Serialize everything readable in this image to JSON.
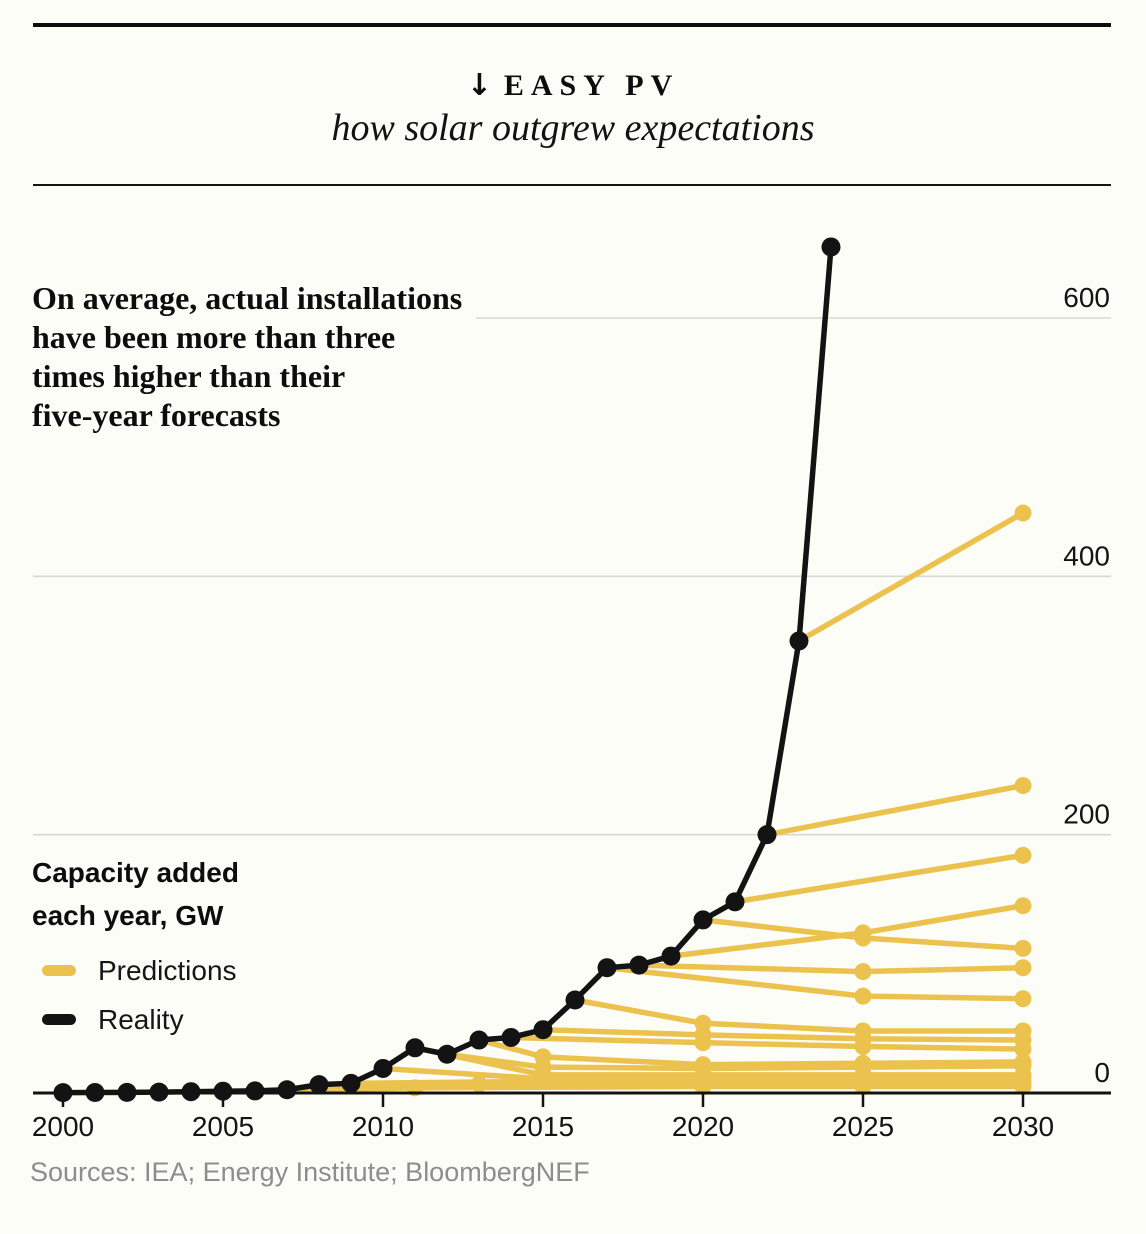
{
  "header": {
    "arrow": "↓",
    "kicker": "EASY PV",
    "subtitle": "how solar outgrew expectations"
  },
  "annotation": {
    "lines": [
      "On average, actual installations",
      "have been more than three",
      "times higher than their",
      "five-year forecasts"
    ]
  },
  "axis_note": {
    "lines": [
      "Capacity added",
      "each year, GW"
    ]
  },
  "legend": {
    "items": [
      {
        "label": "Predictions",
        "color": "#ecc24f"
      },
      {
        "label": "Reality",
        "color": "#131313"
      }
    ]
  },
  "source": "Sources: IEA; Energy Institute; BloombergNEF",
  "colors": {
    "prediction": "#ecc24f",
    "reality": "#131313",
    "grid": "#d7d7d3",
    "axis": "#121212",
    "text": "#141414",
    "muted": "#8d8d8d",
    "background": "#fdfdf7"
  },
  "chart_data": {
    "type": "line",
    "title": "EASY PV — how solar outgrew expectations",
    "ylabel": "Capacity added each year, GW",
    "xlim": [
      2000,
      2031
    ],
    "ylim": [
      0,
      620
    ],
    "x_ticks": [
      2000,
      2005,
      2010,
      2015,
      2020,
      2025,
      2030
    ],
    "y_ticks": [
      0,
      200,
      400,
      600
    ],
    "grid": "horizontal gridlines at 200, 400, 600; y labels on right",
    "legend_position": "left, mid-chart",
    "series": [
      {
        "name": "Reality",
        "style": "line-with-markers",
        "color": "#131313",
        "points": [
          [
            2000,
            0.3
          ],
          [
            2001,
            0.4
          ],
          [
            2002,
            0.5
          ],
          [
            2003,
            0.7
          ],
          [
            2004,
            1
          ],
          [
            2005,
            1.4
          ],
          [
            2006,
            1.6
          ],
          [
            2007,
            2.5
          ],
          [
            2008,
            6.5
          ],
          [
            2009,
            7.5
          ],
          [
            2010,
            19
          ],
          [
            2011,
            35
          ],
          [
            2012,
            30
          ],
          [
            2013,
            41
          ],
          [
            2014,
            43
          ],
          [
            2015,
            49
          ],
          [
            2016,
            72
          ],
          [
            2017,
            97
          ],
          [
            2018,
            99
          ],
          [
            2019,
            106
          ],
          [
            2020,
            134
          ],
          [
            2021,
            148
          ],
          [
            2022,
            200
          ],
          [
            2023,
            350
          ],
          [
            2024,
            655
          ]
        ]
      },
      {
        "name": "Predictions",
        "style": "line-with-markers",
        "color": "#ecc24f",
        "lines": [
          {
            "vintage": 2006,
            "points": [
              [
                2006,
                1.6
              ],
              [
                2011,
                4
              ],
              [
                2020,
                5
              ],
              [
                2025,
                5
              ],
              [
                2030,
                5
              ]
            ]
          },
          {
            "vintage": 2008,
            "points": [
              [
                2008,
                6.5
              ],
              [
                2013,
                7
              ],
              [
                2020,
                7
              ],
              [
                2025,
                7
              ],
              [
                2030,
                7
              ]
            ]
          },
          {
            "vintage": 2009,
            "points": [
              [
                2009,
                7.5
              ],
              [
                2015,
                9
              ],
              [
                2020,
                10
              ],
              [
                2025,
                10
              ],
              [
                2030,
                10
              ]
            ]
          },
          {
            "vintage": 2010,
            "points": [
              [
                2010,
                19
              ],
              [
                2015,
                11
              ],
              [
                2020,
                12
              ],
              [
                2025,
                12
              ],
              [
                2030,
                13
              ]
            ]
          },
          {
            "vintage": 2011,
            "points": [
              [
                2011,
                35
              ],
              [
                2015,
                14
              ],
              [
                2020,
                14
              ],
              [
                2025,
                14
              ],
              [
                2030,
                14
              ]
            ]
          },
          {
            "vintage": 2012,
            "points": [
              [
                2012,
                30
              ],
              [
                2015,
                20
              ],
              [
                2020,
                19
              ],
              [
                2025,
                20
              ],
              [
                2030,
                21
              ]
            ]
          },
          {
            "vintage": 2013,
            "points": [
              [
                2013,
                41
              ],
              [
                2015,
                28
              ],
              [
                2020,
                22
              ],
              [
                2025,
                23
              ],
              [
                2030,
                24
              ]
            ]
          },
          {
            "vintage": 2014,
            "points": [
              [
                2014,
                43
              ],
              [
                2020,
                39
              ],
              [
                2025,
                36
              ],
              [
                2030,
                34
              ]
            ]
          },
          {
            "vintage": 2015,
            "points": [
              [
                2015,
                49
              ],
              [
                2020,
                45
              ],
              [
                2025,
                42
              ],
              [
                2030,
                41
              ]
            ]
          },
          {
            "vintage": 2016,
            "points": [
              [
                2016,
                72
              ],
              [
                2020,
                54
              ],
              [
                2025,
                48
              ],
              [
                2030,
                48
              ]
            ]
          },
          {
            "vintage": 2017,
            "points": [
              [
                2017,
                97
              ],
              [
                2025,
                75
              ],
              [
                2030,
                73
              ]
            ]
          },
          {
            "vintage": 2018,
            "points": [
              [
                2018,
                99
              ],
              [
                2025,
                94
              ],
              [
                2030,
                97
              ]
            ]
          },
          {
            "vintage": 2019,
            "points": [
              [
                2019,
                106
              ],
              [
                2025,
                124
              ],
              [
                2030,
                145
              ]
            ]
          },
          {
            "vintage": 2020,
            "points": [
              [
                2020,
                134
              ],
              [
                2025,
                120
              ],
              [
                2030,
                112
              ]
            ]
          },
          {
            "vintage": 2021,
            "points": [
              [
                2021,
                148
              ],
              [
                2030,
                184
              ]
            ]
          },
          {
            "vintage": 2022,
            "points": [
              [
                2022,
                200
              ],
              [
                2030,
                238
              ]
            ]
          },
          {
            "vintage": 2023,
            "points": [
              [
                2023,
                350
              ],
              [
                2030,
                449
              ]
            ]
          }
        ]
      }
    ]
  }
}
